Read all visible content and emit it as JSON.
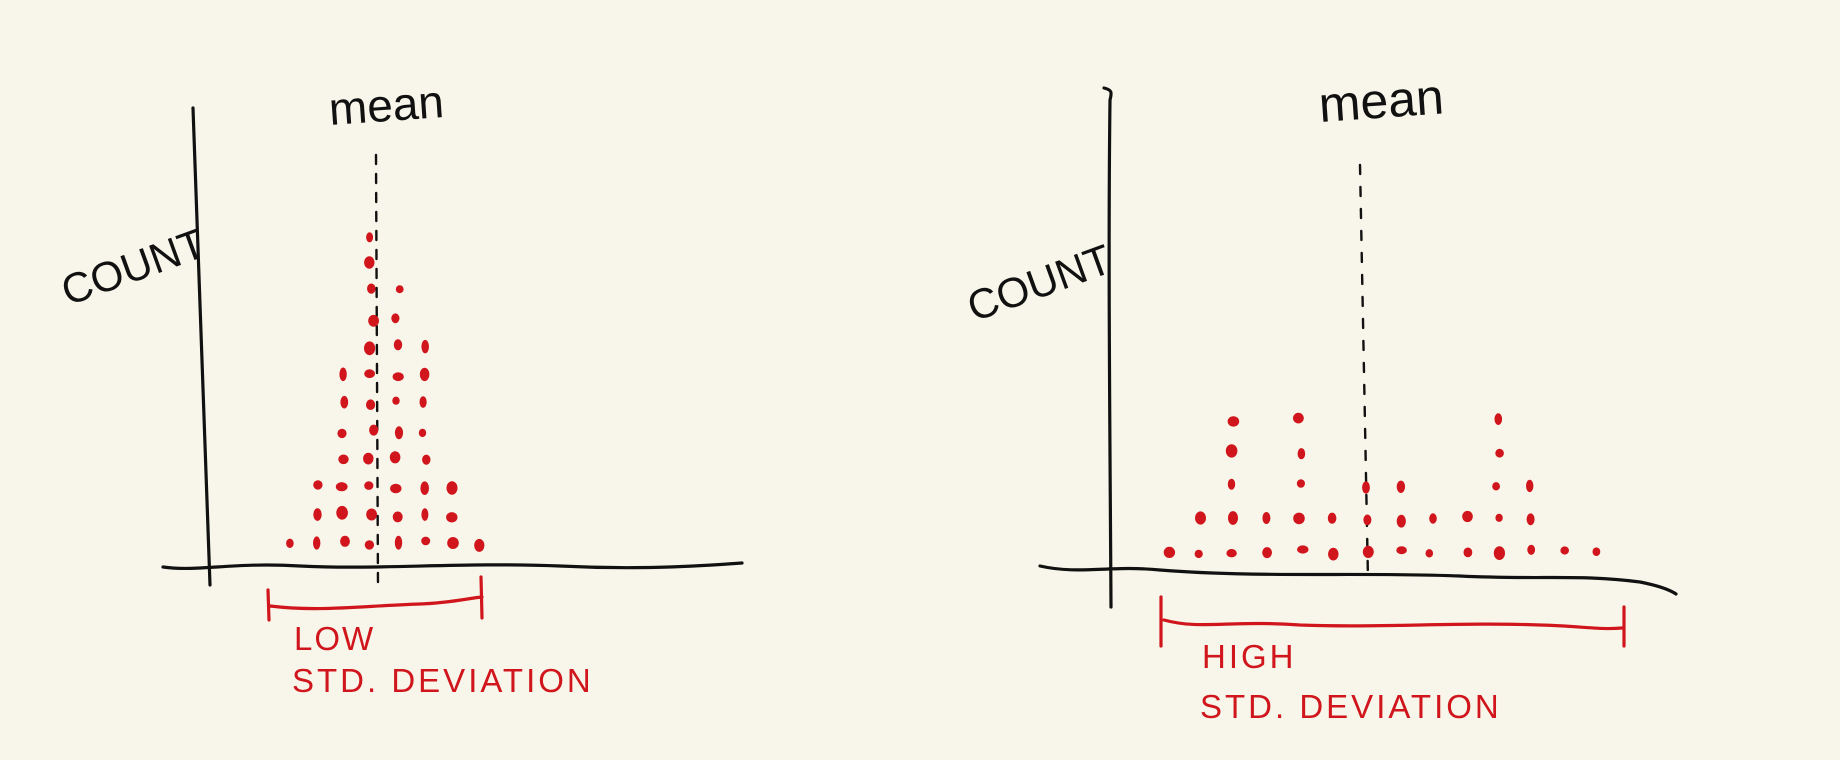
{
  "colors": {
    "background": "#f8f6ea",
    "ink": "#111111",
    "accent": "#d0161c"
  },
  "panels": [
    {
      "id": "low",
      "mean_label": "mean",
      "y_label": "COUNT",
      "range_label_line1": "LOW",
      "range_label_line2": "STD. DEVIATION",
      "dot_columns": [
        1,
        3,
        7,
        12,
        10,
        8,
        3,
        1
      ],
      "spread": "narrow"
    },
    {
      "id": "high",
      "mean_label": "mean",
      "y_label": "COUNT",
      "range_label_line1": "HIGH",
      "range_label_line2": "STD. DEVIATION",
      "dot_columns": [
        1,
        2,
        5,
        2,
        5,
        2,
        3,
        3,
        2,
        2,
        5,
        3,
        1,
        1
      ],
      "spread": "wide"
    }
  ]
}
